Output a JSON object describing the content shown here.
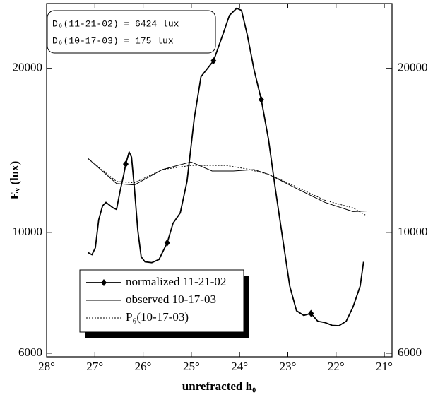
{
  "chart_data": {
    "type": "line",
    "xlabel": "unrefracted h₀",
    "ylabel": "Eᵥ (lux)",
    "annotations": [
      "D₆(11-21-02) = 6424 lux",
      "D₆(10-17-03) = 175 lux"
    ],
    "xlim": [
      28,
      20.84
    ],
    "ylim": [
      5910,
      26300
    ],
    "log_y": true,
    "xticks": [
      {
        "value": 28,
        "label": "28°"
      },
      {
        "value": 27,
        "label": "27°"
      },
      {
        "value": 26,
        "label": "26°"
      },
      {
        "value": 25,
        "label": "25°"
      },
      {
        "value": 24,
        "label": "24°"
      },
      {
        "value": 23,
        "label": "23°"
      },
      {
        "value": 22,
        "label": "22°"
      },
      {
        "value": 21,
        "label": "21°"
      }
    ],
    "yticks": [
      6000,
      10000,
      20000
    ],
    "y2ticks": [
      6000,
      10000,
      20000
    ],
    "legend": "lower-left",
    "series": [
      {
        "name": "normalized 11-21-02",
        "color": "#000000",
        "linestyle": "solid",
        "marker": "diamond",
        "x": [
          27.14,
          27.06,
          26.99,
          26.92,
          26.84,
          26.77,
          26.62,
          26.55,
          26.48,
          26.4,
          26.36,
          26.29,
          26.24,
          26.18,
          26.11,
          26.04,
          25.96,
          25.82,
          25.67,
          25.5,
          25.38,
          25.23,
          25.09,
          24.94,
          24.8,
          24.54,
          24.35,
          24.21,
          24.06,
          23.96,
          23.84,
          23.7,
          23.55,
          23.4,
          23.26,
          23.11,
          22.96,
          22.82,
          22.67,
          22.52,
          22.38,
          22.23,
          22.08,
          21.94,
          21.79,
          21.65,
          21.5,
          21.43
        ],
        "values": [
          9180,
          9100,
          9370,
          10550,
          11190,
          11350,
          11090,
          11020,
          11870,
          12780,
          13350,
          14040,
          13750,
          12040,
          10090,
          9020,
          8830,
          8800,
          8920,
          9570,
          10390,
          10860,
          12400,
          16180,
          19310,
          20650,
          23030,
          25020,
          25780,
          25550,
          23030,
          19880,
          17520,
          14800,
          12040,
          9790,
          7970,
          7180,
          7040,
          7100,
          6870,
          6830,
          6750,
          6740,
          6870,
          7290,
          7970,
          8830
        ],
        "markers": {
          "x": [
            26.36,
            25.5,
            24.54,
            23.55,
            22.52
          ],
          "values": [
            13350,
            9570,
            20650,
            17520,
            7100
          ]
        }
      },
      {
        "name": "observed 10-17-03",
        "color": "#000000",
        "linestyle": "solid",
        "x": [
          27.14,
          26.55,
          26.18,
          25.6,
          25.01,
          24.57,
          24.13,
          23.7,
          23.4,
          22.82,
          22.23,
          21.65,
          21.35
        ],
        "values": [
          13660,
          12290,
          12220,
          13040,
          13470,
          12960,
          12960,
          13040,
          12780,
          12040,
          11350,
          10920,
          10950
        ]
      },
      {
        "name": "P₆(10-17-03)",
        "color": "#000000",
        "linestyle": "dotted",
        "x": [
          27.14,
          26.55,
          26.18,
          25.6,
          25.01,
          24.28,
          23.84,
          23.4,
          22.82,
          22.23,
          21.65,
          21.35
        ],
        "values": [
          13660,
          12400,
          12330,
          13040,
          13270,
          13270,
          13070,
          12780,
          12120,
          11450,
          11090,
          10710
        ]
      }
    ]
  }
}
